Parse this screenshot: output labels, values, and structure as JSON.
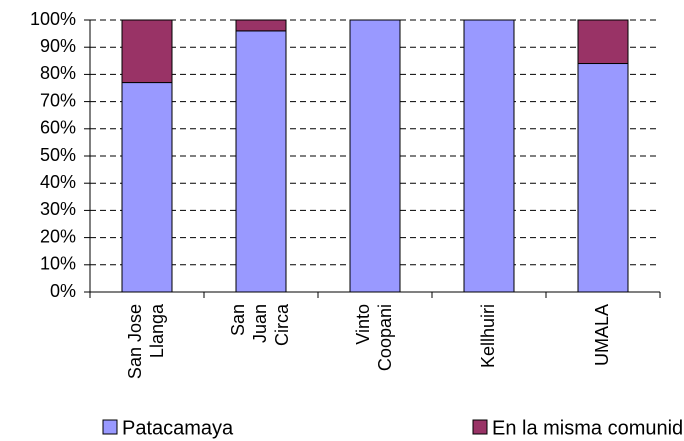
{
  "chart_data": {
    "type": "stacked_bar",
    "categories": [
      "San Jose\nLlanga",
      "San\nJuan\nCirca",
      "Vinto\nCoopani",
      "Kellhuiri",
      "UMALA"
    ],
    "series": [
      {
        "name": "Patacamaya",
        "color": "#9999ff",
        "values": [
          77,
          96,
          100,
          100,
          84
        ]
      },
      {
        "name": "En la misma comunidad",
        "color": "#993366",
        "values": [
          23,
          4,
          0,
          0,
          16
        ]
      }
    ],
    "ylim": [
      0,
      100
    ],
    "yticks": [
      {
        "value": 0,
        "label": "0%"
      },
      {
        "value": 10,
        "label": "10%"
      },
      {
        "value": 20,
        "label": "20%"
      },
      {
        "value": 30,
        "label": "30%"
      },
      {
        "value": 40,
        "label": "40%"
      },
      {
        "value": 50,
        "label": "50%"
      },
      {
        "value": 60,
        "label": "60%"
      },
      {
        "value": 70,
        "label": "70%"
      },
      {
        "value": 80,
        "label": "80%"
      },
      {
        "value": 90,
        "label": "90%"
      },
      {
        "value": 100,
        "label": "100%"
      }
    ],
    "grid": true,
    "legend": "bottom"
  }
}
